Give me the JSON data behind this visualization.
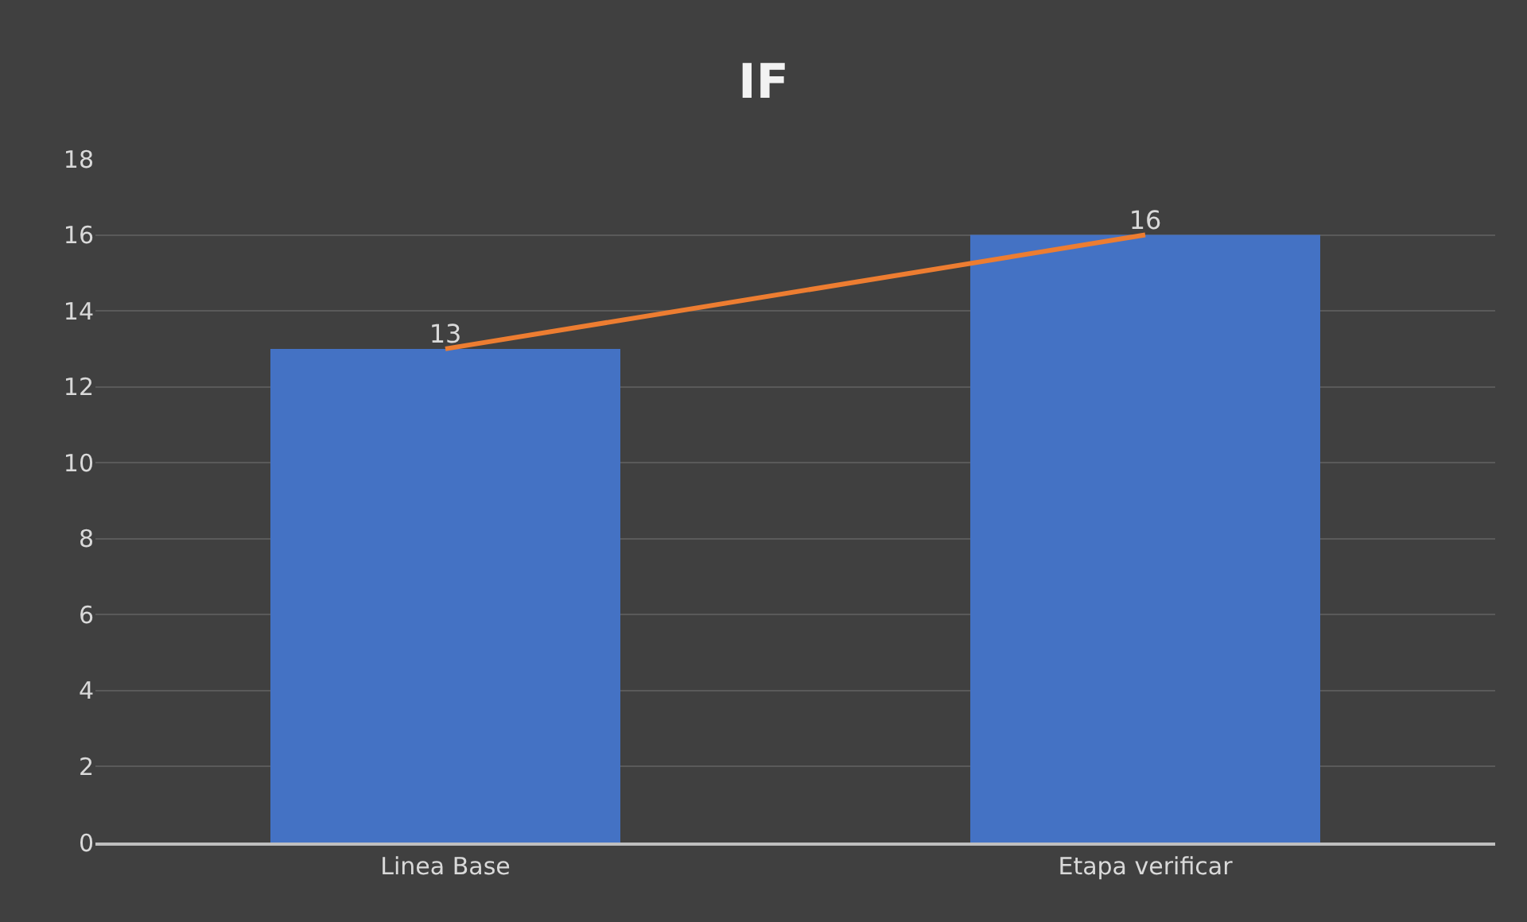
{
  "chart_data": {
    "type": "bar",
    "title": "IF",
    "categories": [
      "Linea Base",
      "Etapa verificar"
    ],
    "series": [
      {
        "color": "#4472c4",
        "values": [
          13,
          16
        ]
      },
      {
        "type": "line",
        "color": "#ed7d31",
        "values": [
          13,
          16
        ],
        "value_labels": [
          "13",
          "16"
        ]
      }
    ],
    "ylim": [
      0,
      18
    ],
    "yticks": [
      0,
      2,
      4,
      6,
      8,
      10,
      12,
      14,
      16,
      18
    ],
    "grid": "y",
    "legend": false,
    "marker": "none",
    "line_style": "solid"
  }
}
